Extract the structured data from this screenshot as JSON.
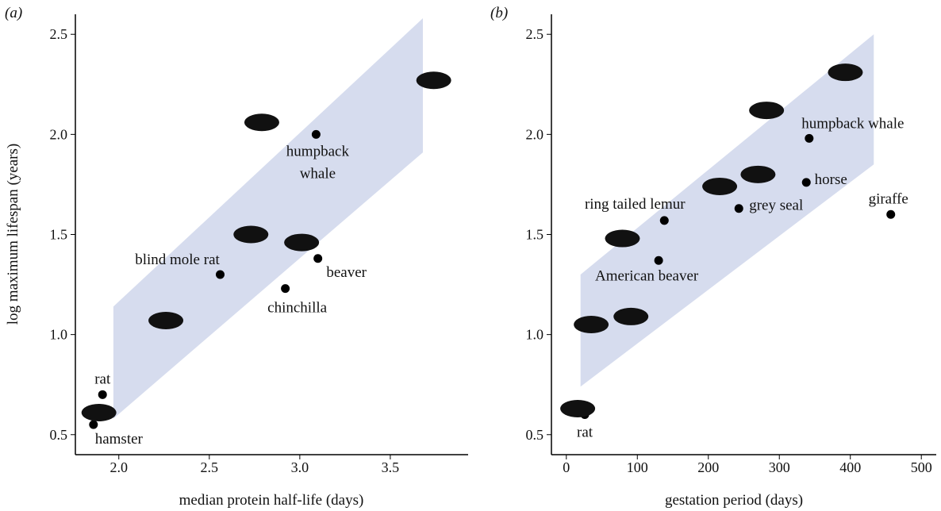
{
  "chart_data": [
    {
      "type": "scatter",
      "panel_label": "(a)",
      "x_label": "median protein half-life (days)",
      "y_label": "log maximum lifespan (years)",
      "xlim": [
        1.76,
        3.93
      ],
      "ylim": [
        0.4,
        2.6
      ],
      "xticks": [
        {
          "value": 2,
          "label": "2.0"
        },
        2.5,
        {
          "value": 3,
          "label": "3.0"
        },
        3.5
      ],
      "yticks": [
        0.5,
        {
          "value": 1,
          "label": "1.0"
        },
        1.5,
        {
          "value": 2,
          "label": "2.0"
        },
        2.5
      ],
      "x": [
        1.91,
        1.86,
        2.56,
        3.09,
        3.1,
        2.92,
        1.89,
        2.26,
        2.73,
        2.79,
        3.01,
        3.74
      ],
      "values": [
        0.7,
        0.55,
        1.3,
        2.0,
        1.38,
        1.23,
        0.61,
        1.07,
        1.5,
        2.06,
        1.46,
        2.27
      ],
      "labels": [
        "rat",
        "hamster",
        "blind mole rat",
        "humpback whale",
        "beaver",
        "chinchilla",
        null,
        null,
        null,
        null,
        null,
        null
      ],
      "color": "#000000",
      "band": {
        "x": [
          1.97,
          3.68
        ],
        "lower": [
          0.58,
          1.91
        ],
        "upper": [
          1.14,
          2.58
        ],
        "color": "#d6dcee"
      }
    },
    {
      "type": "scatter",
      "panel_label": "(b)",
      "x_label": "gestation period (days)",
      "xlim": [
        -21,
        521
      ],
      "ylim": [
        0.4,
        2.6
      ],
      "xticks": [
        0,
        100,
        200,
        300,
        400,
        500
      ],
      "yticks": [
        0.5,
        {
          "value": 1,
          "label": "1.0"
        },
        1.5,
        {
          "value": 2,
          "label": "2.0"
        },
        2.5
      ],
      "x": [
        342,
        338,
        457,
        243,
        138,
        130,
        26,
        393,
        282,
        216,
        270,
        79,
        35,
        91,
        16
      ],
      "values": [
        1.98,
        1.76,
        1.6,
        1.63,
        1.57,
        1.37,
        0.6,
        2.31,
        2.12,
        1.74,
        1.8,
        1.48,
        1.05,
        1.09,
        0.63
      ],
      "labels": [
        "humpback whale",
        "horse",
        "giraffe",
        "grey seal",
        "ring tailed lemur",
        "American beaver",
        "rat",
        null,
        null,
        null,
        null,
        null,
        null,
        null,
        null
      ],
      "color": "#000000",
      "band": {
        "x": [
          20,
          433
        ],
        "lower": [
          0.74,
          1.85
        ],
        "upper": [
          1.3,
          2.5
        ],
        "color": "#d6dcee"
      }
    }
  ]
}
